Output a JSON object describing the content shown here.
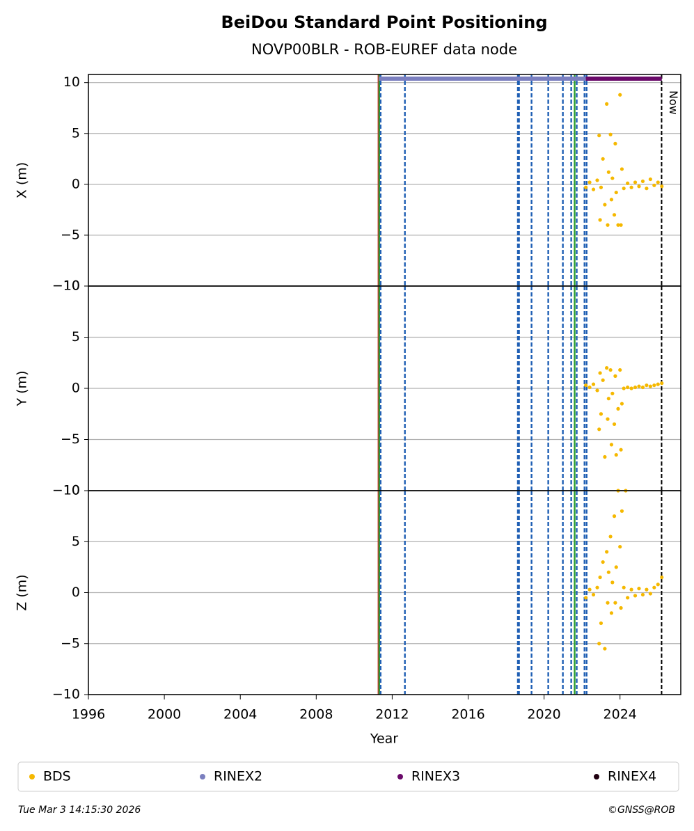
{
  "title": "BeiDou Standard Point Positioning",
  "subtitle": "NOVP00BLR - ROB-EUREF data node",
  "footer_left": "Tue Mar  3 14:15:30 2026",
  "footer_right": "©GNSS@ROB",
  "xlabel": "Year",
  "xlim": [
    1996,
    2027.2
  ],
  "xticks": [
    1996,
    2000,
    2004,
    2008,
    2012,
    2016,
    2020,
    2024
  ],
  "events": [
    {
      "x": 2011.28,
      "color": "#d62728",
      "style": "solid"
    },
    {
      "x": 2011.32,
      "color": "#2ca02c",
      "style": "solid"
    },
    {
      "x": 2011.39,
      "color": "#1f5fb4",
      "style": "dashed"
    },
    {
      "x": 2012.67,
      "color": "#1f5fb4",
      "style": "dashed"
    },
    {
      "x": 2018.62,
      "color": "#1f5fb4",
      "style": "dashed"
    },
    {
      "x": 2018.68,
      "color": "#1f5fb4",
      "style": "dashed"
    },
    {
      "x": 2019.34,
      "color": "#1f5fb4",
      "style": "dashed"
    },
    {
      "x": 2020.22,
      "color": "#1f5fb4",
      "style": "dashed"
    },
    {
      "x": 2020.99,
      "color": "#1f5fb4",
      "style": "dashed"
    },
    {
      "x": 2021.43,
      "color": "#1f5fb4",
      "style": "dashed"
    },
    {
      "x": 2021.61,
      "color": "#2ca02c",
      "style": "solid"
    },
    {
      "x": 2021.72,
      "color": "#1f5fb4",
      "style": "dashed"
    },
    {
      "x": 2022.13,
      "color": "#1f5fb4",
      "style": "dashed"
    },
    {
      "x": 2022.24,
      "color": "#1f5fb4",
      "style": "dashed"
    }
  ],
  "now": {
    "x": 2026.19,
    "label": "Now"
  },
  "coverage": [
    {
      "name": "RINEX2",
      "color": "#7b7fbf",
      "x": [
        2011.3,
        2022.2
      ]
    },
    {
      "name": "RINEX3",
      "color": "#6a0a6a",
      "x": [
        2022.2,
        2026.2
      ]
    },
    {
      "name": "RINEX4",
      "color": "#200010",
      "x": []
    }
  ],
  "chart_data": [
    {
      "type": "scatter",
      "ylabel": "X (m)",
      "ylim": [
        -10,
        10.8
      ],
      "yticks": [
        {
          "value": -10,
          "label": "−10"
        },
        {
          "value": -5,
          "label": "−5"
        },
        0,
        5,
        10
      ],
      "series": [
        {
          "name": "BDS",
          "color": "#f5b800",
          "x": [
            2022.2,
            2022.4,
            2022.6,
            2022.8,
            2022.9,
            2022.95,
            2023.0,
            2023.1,
            2023.2,
            2023.3,
            2023.35,
            2023.4,
            2023.5,
            2023.55,
            2023.6,
            2023.7,
            2023.75,
            2023.8,
            2023.9,
            2024.0,
            2024.05,
            2024.1,
            2024.2,
            2024.4,
            2024.6,
            2024.8,
            2025.0,
            2025.2,
            2025.4,
            2025.6,
            2025.8,
            2026.0,
            2026.2
          ],
          "values": [
            -0.3,
            0.2,
            -0.5,
            0.4,
            4.8,
            -3.5,
            -0.3,
            2.5,
            -2.0,
            7.9,
            -4.0,
            1.2,
            4.9,
            -1.5,
            0.6,
            -3.0,
            4.0,
            -0.8,
            -4.0,
            8.8,
            -4.0,
            1.5,
            -0.4,
            0.1,
            -0.3,
            0.2,
            -0.2,
            0.3,
            -0.4,
            0.5,
            -0.1,
            0.2,
            -0.2
          ]
        }
      ]
    },
    {
      "type": "scatter",
      "ylabel": "Y (m)",
      "ylim": [
        -10,
        10
      ],
      "yticks": [
        {
          "value": -10,
          "label": "−10"
        },
        {
          "value": -5,
          "label": "−5"
        },
        0,
        5,
        10
      ],
      "series": [
        {
          "name": "BDS",
          "color": "#f5b800",
          "x": [
            2022.2,
            2022.4,
            2022.6,
            2022.8,
            2022.9,
            2022.95,
            2023.0,
            2023.1,
            2023.2,
            2023.3,
            2023.35,
            2023.4,
            2023.5,
            2023.55,
            2023.6,
            2023.7,
            2023.75,
            2023.8,
            2023.9,
            2024.0,
            2024.05,
            2024.1,
            2024.2,
            2024.4,
            2024.6,
            2024.8,
            2025.0,
            2025.2,
            2025.4,
            2025.6,
            2025.8,
            2026.0,
            2026.2
          ],
          "values": [
            0.3,
            0.1,
            0.4,
            -0.2,
            -4.0,
            1.5,
            -2.5,
            0.8,
            -6.7,
            2.0,
            -3.0,
            -1.0,
            1.8,
            -5.5,
            -0.5,
            -3.5,
            1.2,
            -6.5,
            -2.0,
            1.8,
            -6.0,
            -1.5,
            0.0,
            0.1,
            0.0,
            0.1,
            0.2,
            0.1,
            0.3,
            0.2,
            0.3,
            0.4,
            0.5
          ]
        }
      ]
    },
    {
      "type": "scatter",
      "ylabel": "Z (m)",
      "ylim": [
        -10,
        10
      ],
      "yticks": [
        {
          "value": -10,
          "label": "−10"
        },
        {
          "value": -5,
          "label": "−5"
        },
        0,
        5,
        10
      ],
      "series": [
        {
          "name": "BDS",
          "color": "#f5b800",
          "x": [
            2022.2,
            2022.4,
            2022.6,
            2022.8,
            2022.9,
            2022.95,
            2023.0,
            2023.1,
            2023.2,
            2023.3,
            2023.35,
            2023.4,
            2023.5,
            2023.55,
            2023.6,
            2023.7,
            2023.75,
            2023.8,
            2023.9,
            2024.0,
            2024.05,
            2024.1,
            2024.2,
            2024.3,
            2024.4,
            2024.6,
            2024.8,
            2025.0,
            2025.2,
            2025.4,
            2025.6,
            2025.8,
            2026.0,
            2026.2
          ],
          "values": [
            -0.5,
            0.3,
            -0.2,
            0.5,
            -5.0,
            1.5,
            -3.0,
            3.0,
            -5.5,
            4.0,
            -1.0,
            2.0,
            5.5,
            -2.0,
            1.0,
            7.5,
            -1.0,
            2.5,
            10.0,
            4.5,
            -1.5,
            8.0,
            0.5,
            10.0,
            -0.5,
            0.3,
            -0.3,
            0.4,
            -0.2,
            0.3,
            -0.1,
            0.5,
            0.8,
            1.5
          ]
        }
      ]
    }
  ]
}
